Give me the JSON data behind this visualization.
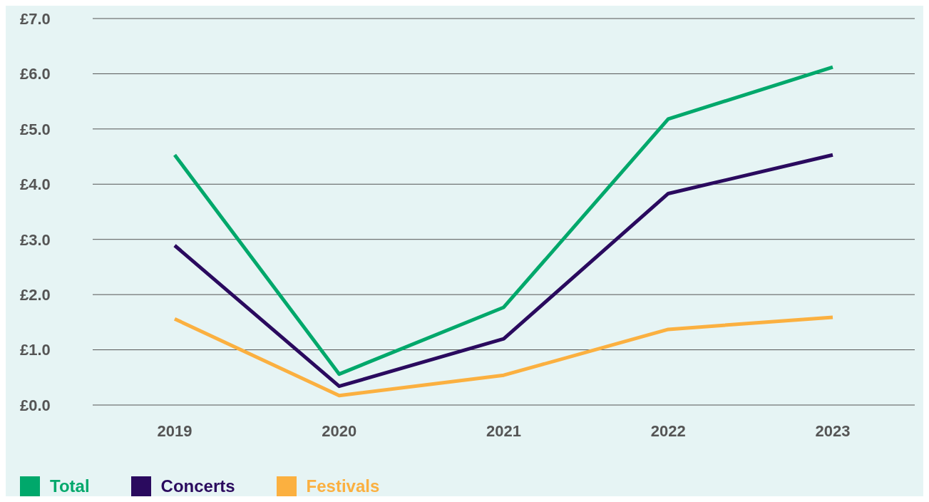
{
  "chart_data": {
    "type": "line",
    "categories": [
      "2019",
      "2020",
      "2021",
      "2022",
      "2023"
    ],
    "series": [
      {
        "name": "Total",
        "color": "#00a86b",
        "values": [
          4.53,
          0.56,
          1.77,
          5.18,
          6.12
        ]
      },
      {
        "name": "Concerts",
        "color": "#2a0a5e",
        "values": [
          2.89,
          0.34,
          1.2,
          3.83,
          4.53
        ]
      },
      {
        "name": "Festivals",
        "color": "#fbb040",
        "values": [
          1.56,
          0.17,
          0.54,
          1.37,
          1.59
        ]
      }
    ],
    "ylim": [
      0,
      7
    ],
    "yticks": [
      {
        "value": 0,
        "label": "£0.0"
      },
      {
        "value": 1,
        "label": "£1.0"
      },
      {
        "value": 2,
        "label": "£2.0"
      },
      {
        "value": 3,
        "label": "£3.0"
      },
      {
        "value": 4,
        "label": "£4.0"
      },
      {
        "value": 5,
        "label": "£5.0"
      },
      {
        "value": 6,
        "label": "£6.0"
      },
      {
        "value": 7,
        "label": "£7.0"
      }
    ],
    "grid": "y",
    "legend": "bottom left",
    "marker": "none",
    "line_style": "solid"
  }
}
